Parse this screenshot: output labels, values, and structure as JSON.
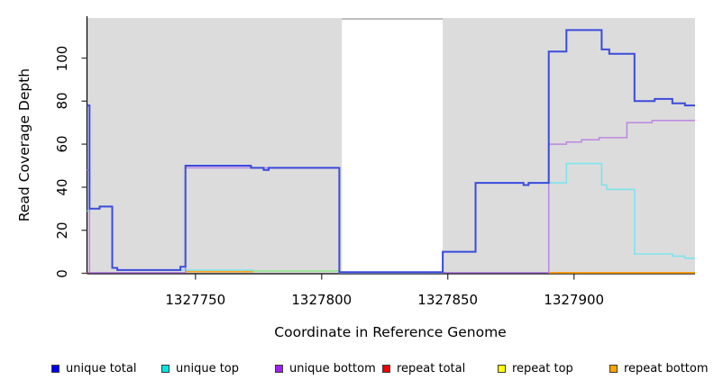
{
  "figure": {
    "xlabel": "Coordinate in Reference Genome",
    "ylabel": "Read Coverage Depth"
  },
  "legend": {
    "items": [
      {
        "id": "unique_total",
        "label": "unique total",
        "swatch_color": "#0000EE"
      },
      {
        "id": "unique_top",
        "label": "unique top",
        "swatch_color": "#00E5E5"
      },
      {
        "id": "unique_bottom",
        "label": "unique bottom",
        "swatch_color": "#A020F0"
      },
      {
        "id": "repeat_total",
        "label": "repeat total",
        "swatch_color": "#EE0000"
      },
      {
        "id": "repeat_top",
        "label": "repeat top",
        "swatch_color": "#FFFF00"
      },
      {
        "id": "repeat_bottom",
        "label": "repeat bottom",
        "swatch_color": "#FFA500"
      }
    ]
  },
  "colors": {
    "page_background": "#FFFFFF",
    "aligned_region_fill": "#DCDCDC",
    "gap_top_edge": "#A8A8A8",
    "axis_line": "#000000",
    "tick_mark": "#3d3d3d"
  },
  "chart_data": {
    "type": "line",
    "title": "",
    "xlabel": "Coordinate in Reference Genome",
    "ylabel": "Read Coverage Depth",
    "xlim": [
      1327707,
      1327948
    ],
    "ylim": [
      0,
      118
    ],
    "x_ticks": [
      1327750,
      1327800,
      1327850,
      1327900
    ],
    "y_ticks": [
      0,
      20,
      40,
      60,
      80,
      100
    ],
    "grid": false,
    "legend_position": "bottom",
    "shaded_regions": [
      {
        "x0": 1327707,
        "x1": 1327808
      },
      {
        "x0": 1327848,
        "x1": 1327948
      }
    ],
    "gap_region": {
      "x0": 1327808,
      "x1": 1327848
    },
    "draw_order": [
      "repeat_total",
      "repeat_bottom",
      "unique_top",
      "repeat_top",
      "unique_bottom",
      "unique_total"
    ],
    "series": [
      {
        "id": "unique_total",
        "name": "unique total",
        "line_color": "#3B4BDC",
        "line_width": 2.0,
        "segments": [
          [
            [
              1327707,
              78
            ],
            [
              1327708,
              30
            ],
            [
              1327712,
              31
            ],
            [
              1327717,
              2.5
            ],
            [
              1327719,
              1.5
            ],
            [
              1327744,
              3
            ],
            [
              1327746,
              50
            ],
            [
              1327772,
              49
            ],
            [
              1327777,
              48
            ],
            [
              1327779,
              49
            ],
            [
              1327807,
              0.5
            ],
            [
              1327848,
              10
            ],
            [
              1327861,
              42
            ],
            [
              1327880,
              41
            ],
            [
              1327882,
              42
            ],
            [
              1327890,
              103
            ],
            [
              1327897,
              113
            ],
            [
              1327911,
              104
            ],
            [
              1327914,
              102
            ],
            [
              1327924,
              80
            ],
            [
              1327932,
              81
            ],
            [
              1327939,
              79
            ],
            [
              1327944,
              78
            ],
            [
              1327948,
              78
            ]
          ]
        ]
      },
      {
        "id": "unique_top",
        "name": "unique top",
        "line_color": "#7FE3EC",
        "line_width": 1.6,
        "segments": [
          [
            [
              1327707,
              29
            ],
            [
              1327708,
              30
            ],
            [
              1327712,
              31
            ],
            [
              1327717,
              2.5
            ],
            [
              1327719,
              1.5
            ],
            [
              1327773,
              1.1
            ],
            [
              1327807,
              0.2
            ],
            [
              1327848,
              10
            ],
            [
              1327861,
              42
            ],
            [
              1327880,
              41
            ],
            [
              1327882,
              42
            ],
            [
              1327897,
              51
            ],
            [
              1327911,
              41
            ],
            [
              1327913,
              39
            ],
            [
              1327924,
              9
            ],
            [
              1327939,
              8
            ],
            [
              1327944,
              7
            ],
            [
              1327948,
              7
            ]
          ]
        ]
      },
      {
        "id": "unique_bottom",
        "name": "unique bottom",
        "line_color": "#BB86E0",
        "line_width": 1.5,
        "segments": [
          [
            [
              1327707,
              48
            ],
            [
              1327708,
              0.3
            ],
            [
              1327746,
              49
            ],
            [
              1327807,
              0.3
            ],
            [
              1327890,
              60
            ],
            [
              1327897,
              61
            ],
            [
              1327903,
              62
            ],
            [
              1327910,
              63
            ],
            [
              1327921,
              70
            ],
            [
              1327931,
              71
            ],
            [
              1327948,
              71
            ]
          ]
        ]
      },
      {
        "id": "repeat_total",
        "name": "repeat total",
        "line_color": "#E8608C",
        "line_width": 1.4,
        "segments": [
          [
            [
              1327707,
              0.3
            ],
            [
              1327746,
              0.3
            ]
          ],
          [
            [
              1327848,
              0.3
            ],
            [
              1327890,
              0.3
            ]
          ]
        ]
      },
      {
        "id": "repeat_top",
        "name": "repeat top",
        "line_color": "#9FE18C",
        "line_width": 1.6,
        "segments": [
          [
            [
              1327773,
              1.1
            ],
            [
              1327807,
              1.1
            ]
          ]
        ]
      },
      {
        "id": "repeat_bottom",
        "name": "repeat bottom",
        "line_color": "#FFA216",
        "line_width": 1.8,
        "segments": [
          [
            [
              1327746,
              0.8
            ],
            [
              1327773,
              0.8
            ]
          ],
          [
            [
              1327890,
              0.25
            ],
            [
              1327948,
              0.25
            ]
          ]
        ]
      }
    ]
  }
}
